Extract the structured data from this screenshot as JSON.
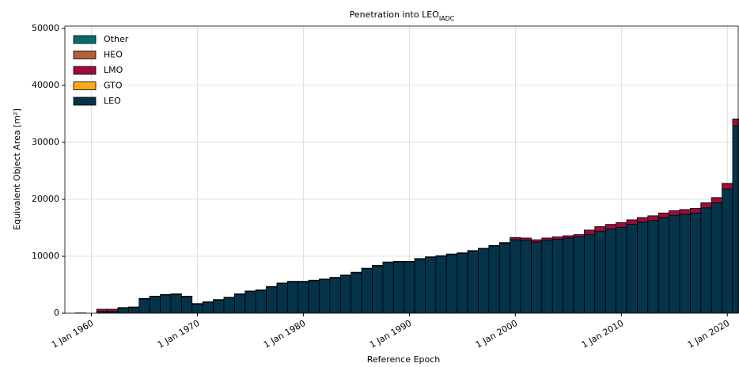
{
  "chart_data": {
    "type": "histogram",
    "title": "Penetration into LEO",
    "title_subscript": "IADC",
    "xlabel": "Reference Epoch",
    "ylabel": "Equivalent Object Area [m²]",
    "bins": [
      1957.5,
      1958.5,
      1959.5,
      1960.5,
      1961.5,
      1962.5,
      1963.5,
      1964.5,
      1965.5,
      1966.5,
      1967.5,
      1968.5,
      1969.5,
      1970.5,
      1971.5,
      1972.5,
      1973.5,
      1974.5,
      1975.5,
      1976.5,
      1977.5,
      1978.5,
      1979.5,
      1980.5,
      1981.5,
      1982.5,
      1983.5,
      1984.5,
      1985.5,
      1986.5,
      1987.5,
      1988.5,
      1989.5,
      1990.5,
      1991.5,
      1992.5,
      1993.5,
      1994.5,
      1995.5,
      1996.5,
      1997.5,
      1998.5,
      1999.5,
      2000.5,
      2001.5,
      2002.5,
      2003.5,
      2004.5,
      2005.5,
      2006.5,
      2007.5,
      2008.5,
      2009.5,
      2010.5,
      2011.5,
      2012.5,
      2013.5,
      2014.5,
      2015.5,
      2016.5,
      2017.5,
      2018.5,
      2019.5,
      2020.5,
      2021.5
    ],
    "series": [
      {
        "name": "LEO",
        "color": "#05344a",
        "values": [
          0,
          50,
          0,
          300,
          300,
          900,
          1000,
          2500,
          2900,
          3200,
          3300,
          2900,
          1600,
          1900,
          2300,
          2700,
          3300,
          3800,
          4000,
          4600,
          5200,
          5500,
          5500,
          5700,
          5900,
          6200,
          6600,
          7100,
          7800,
          8300,
          8900,
          9000,
          9000,
          9500,
          9800,
          10000,
          10300,
          10500,
          10900,
          11300,
          11800,
          12300,
          12900,
          12800,
          12500,
          12800,
          13000,
          13200,
          13400,
          13800,
          14400,
          14800,
          15100,
          15600,
          16000,
          16300,
          16800,
          17200,
          17400,
          17600,
          18500,
          19400,
          21800,
          32900
        ]
      },
      {
        "name": "GTO",
        "color": "#fbaa19",
        "values": [
          0,
          0,
          0,
          0,
          0,
          0,
          0,
          0,
          0,
          0,
          0,
          0,
          0,
          0,
          0,
          0,
          0,
          0,
          0,
          0,
          0,
          0,
          0,
          0,
          0,
          0,
          0,
          0,
          0,
          0,
          0,
          0,
          0,
          0,
          0,
          0,
          0,
          0,
          0,
          0,
          0,
          0,
          0,
          0,
          0,
          0,
          0,
          0,
          0,
          0,
          0,
          0,
          0,
          0,
          0,
          0,
          0,
          0,
          0,
          0,
          0,
          0,
          0,
          0
        ]
      },
      {
        "name": "LMO",
        "color": "#9b0d3a",
        "values": [
          0,
          0,
          0,
          400,
          400,
          100,
          100,
          100,
          100,
          100,
          100,
          100,
          100,
          100,
          100,
          100,
          100,
          100,
          100,
          100,
          100,
          100,
          100,
          100,
          100,
          100,
          100,
          100,
          100,
          100,
          100,
          100,
          100,
          100,
          100,
          100,
          100,
          100,
          100,
          100,
          100,
          100,
          400,
          400,
          400,
          400,
          400,
          400,
          400,
          800,
          800,
          800,
          800,
          800,
          800,
          800,
          800,
          800,
          800,
          800,
          900,
          900,
          1000,
          1200
        ]
      },
      {
        "name": "HEO",
        "color": "#b5603a",
        "values": [
          0,
          0,
          0,
          0,
          0,
          0,
          0,
          0,
          0,
          0,
          0,
          0,
          0,
          0,
          0,
          0,
          0,
          0,
          0,
          0,
          0,
          0,
          0,
          0,
          0,
          0,
          0,
          0,
          0,
          0,
          0,
          0,
          0,
          0,
          0,
          0,
          0,
          0,
          0,
          0,
          0,
          0,
          0,
          0,
          0,
          0,
          0,
          0,
          0,
          0,
          0,
          0,
          0,
          0,
          0,
          0,
          0,
          0,
          0,
          0,
          0,
          0,
          0,
          0
        ]
      },
      {
        "name": "Other",
        "color": "#0b6b6b",
        "values": [
          0,
          0,
          0,
          0,
          0,
          0,
          0,
          0,
          0,
          0,
          0,
          0,
          0,
          0,
          0,
          0,
          0,
          0,
          0,
          0,
          0,
          0,
          0,
          0,
          0,
          0,
          0,
          0,
          0,
          0,
          0,
          0,
          0,
          0,
          0,
          0,
          0,
          0,
          0,
          0,
          0,
          0,
          0,
          0,
          0,
          0,
          0,
          0,
          0,
          0,
          0,
          0,
          0,
          0,
          0,
          0,
          0,
          0,
          0,
          0,
          0,
          0,
          0,
          0
        ]
      }
    ],
    "xlim": [
      1957.5,
      2021.1
    ],
    "xticks": [
      {
        "value": 1960,
        "label": "1 Jan 1960"
      },
      {
        "value": 1970,
        "label": "1 Jan 1970"
      },
      {
        "value": 1980,
        "label": "1 Jan 1980"
      },
      {
        "value": 1990,
        "label": "1 Jan 1990"
      },
      {
        "value": 2000,
        "label": "1 Jan 2000"
      },
      {
        "value": 2010,
        "label": "1 Jan 2010"
      },
      {
        "value": 2020,
        "label": "1 Jan 2020"
      }
    ],
    "ylim": [
      0,
      50400
    ],
    "yticks": [
      0,
      10000,
      20000,
      30000,
      40000,
      50000
    ],
    "grid": true,
    "legend": "upper left"
  }
}
